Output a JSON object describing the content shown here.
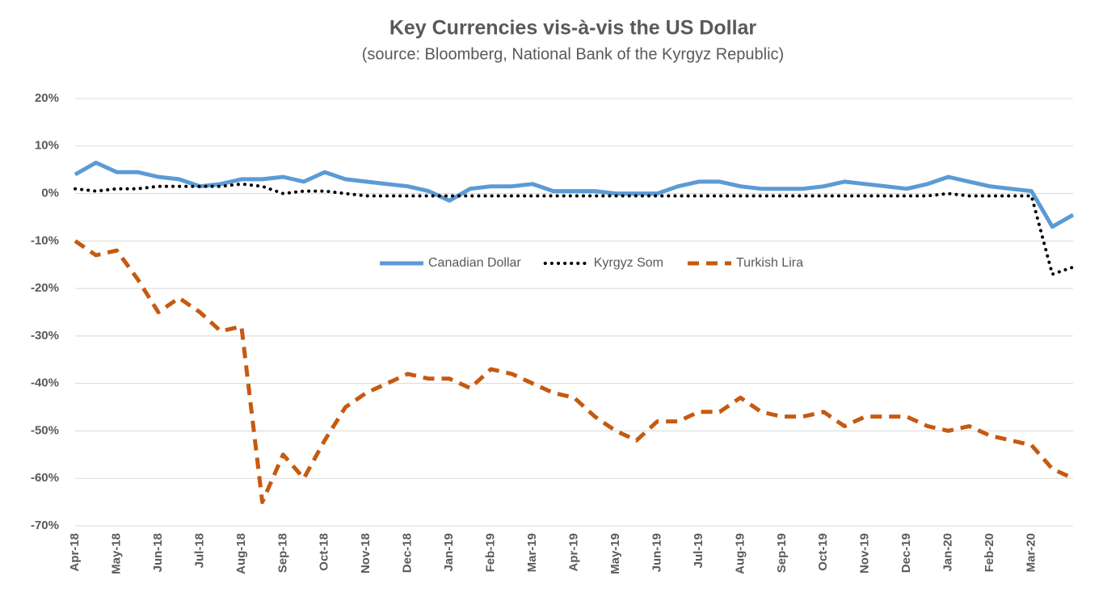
{
  "chart_data": {
    "type": "line",
    "title": "Key Currencies vis-à-vis the US Dollar",
    "subtitle": "(source: Bloomberg, National Bank of the Kyrgyz Republic)",
    "categories": [
      "Apr-18",
      null,
      "May-18",
      null,
      "Jun-18",
      null,
      "Jul-18",
      null,
      "Aug-18",
      null,
      "Sep-18",
      null,
      "Oct-18",
      null,
      "Nov-18",
      null,
      "Dec-18",
      null,
      "Jan-19",
      null,
      "Feb-19",
      null,
      "Mar-19",
      null,
      "Apr-19",
      null,
      "May-19",
      null,
      "Jun-19",
      null,
      "Jul-19",
      null,
      "Aug-19",
      null,
      "Sep-19",
      null,
      "Oct-19",
      null,
      "Nov-19",
      null,
      "Dec-19",
      null,
      "Jan-20",
      null,
      "Feb-20",
      null,
      "Mar-20",
      null,
      null
    ],
    "series": [
      {
        "name": "Canadian Dollar",
        "color": "#5b9bd5",
        "dash": "solid",
        "values": [
          4,
          6.5,
          4.5,
          4.5,
          3.5,
          3,
          1.5,
          2,
          3,
          3,
          3.5,
          2.5,
          4.5,
          3,
          2.5,
          2,
          1.5,
          0.5,
          -1.5,
          1,
          1.5,
          1.5,
          2,
          0.5,
          0.5,
          0.5,
          0,
          0,
          0,
          1.5,
          2.5,
          2.5,
          1.5,
          1,
          1,
          1,
          1.5,
          2.5,
          2,
          1.5,
          1,
          2,
          3.5,
          2.5,
          1.5,
          1,
          0.5,
          -7,
          -4.5
        ]
      },
      {
        "name": "Kyrgyz Som",
        "color": "#000000",
        "dash": "dotted",
        "values": [
          1,
          0.5,
          1,
          1,
          1.5,
          1.5,
          1.5,
          1.5,
          2,
          1.5,
          0,
          0.5,
          0.5,
          0,
          -0.5,
          -0.5,
          -0.5,
          -0.5,
          -0.5,
          -0.5,
          -0.5,
          -0.5,
          -0.5,
          -0.5,
          -0.5,
          -0.5,
          -0.5,
          -0.5,
          -0.5,
          -0.5,
          -0.5,
          -0.5,
          -0.5,
          -0.5,
          -0.5,
          -0.5,
          -0.5,
          -0.5,
          -0.5,
          -0.5,
          -0.5,
          -0.5,
          0,
          -0.5,
          -0.5,
          -0.5,
          -0.5,
          -17,
          -15.5
        ]
      },
      {
        "name": "Turkish Lira",
        "color": "#c55a11",
        "dash": "dashed",
        "values": [
          -10,
          -13,
          -12,
          -18,
          -25,
          -22,
          -25,
          -29,
          -28,
          -65,
          -55,
          -60,
          -52,
          -45,
          -42,
          -40,
          -38,
          -39,
          -39,
          -41,
          -37,
          -38,
          -40,
          -42,
          -43,
          -47,
          -50,
          -52,
          -48,
          -48,
          -46,
          -46,
          -43,
          -46,
          -47,
          -47,
          -46,
          -49,
          -47,
          -47,
          -47,
          -49,
          -50,
          -49,
          -51,
          -52,
          -53,
          -58,
          -60
        ]
      }
    ],
    "ylim": [
      -70,
      20
    ],
    "yticks": [
      {
        "value": -70,
        "label": "-70%"
      },
      {
        "value": -60,
        "label": "-60%"
      },
      {
        "value": -50,
        "label": "-50%"
      },
      {
        "value": -40,
        "label": "-40%"
      },
      {
        "value": -30,
        "label": "-30%"
      },
      {
        "value": -20,
        "label": "-20%"
      },
      {
        "value": -10,
        "label": "-10%"
      },
      {
        "value": 0,
        "label": "0%"
      },
      {
        "value": 10,
        "label": "10%"
      },
      {
        "value": 20,
        "label": "20%"
      }
    ],
    "grid": true,
    "legend": "center"
  }
}
